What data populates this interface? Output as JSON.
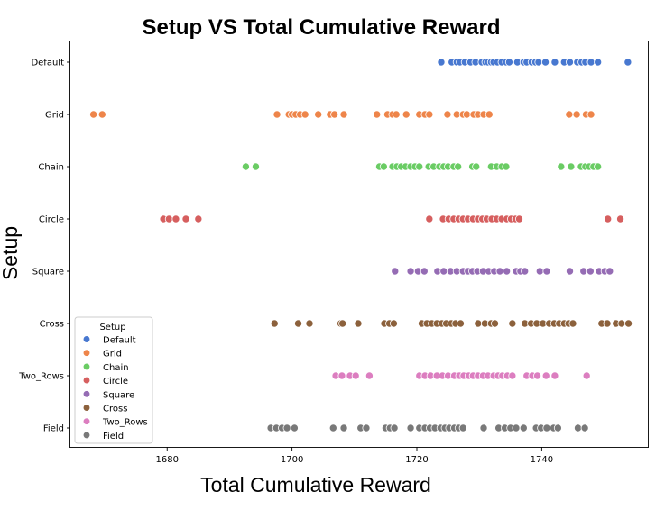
{
  "chart_data": {
    "type": "scatter",
    "title": "Setup VS Total Cumulative Reward",
    "xlabel": "Total Cumulative Reward",
    "ylabel": "Setup",
    "xlim": [
      1664.5,
      1757
    ],
    "x_ticks": [
      1680,
      1700,
      1720,
      1740
    ],
    "categories": [
      "Default",
      "Grid",
      "Chain",
      "Circle",
      "Square",
      "Cross",
      "Two_Rows",
      "Field"
    ],
    "grid": false,
    "legend": {
      "title": "Setup",
      "placement": "lower-left",
      "entries": [
        "Default",
        "Grid",
        "Chain",
        "Circle",
        "Square",
        "Cross",
        "Two_Rows",
        "Field"
      ]
    },
    "series": [
      {
        "name": "Default",
        "color": "#4878d0",
        "values": [
          1723.9,
          1725.6,
          1726.4,
          1726.9,
          1727.7,
          1728.6,
          1729.4,
          1730.4,
          1731.0,
          1731.4,
          1731.9,
          1732.3,
          1732.9,
          1733.6,
          1734.3,
          1734.8,
          1736.1,
          1737.1,
          1737.6,
          1738.4,
          1739.0,
          1739.5,
          1740.6,
          1742.1,
          1743.6,
          1744.5,
          1745.7,
          1746.4,
          1747.0,
          1747.9,
          1749.0,
          1753.8
        ]
      },
      {
        "name": "Grid",
        "color": "#ee854a",
        "values": [
          1668.2,
          1669.6,
          1697.6,
          1699.5,
          1700.0,
          1700.6,
          1701.3,
          1702.1,
          1704.2,
          1706.1,
          1706.8,
          1708.3,
          1713.6,
          1715.3,
          1716.1,
          1716.7,
          1718.3,
          1720.4,
          1721.3,
          1722.0,
          1724.9,
          1726.4,
          1727.4,
          1728.0,
          1729.1,
          1729.8,
          1730.7,
          1731.6,
          1744.4,
          1745.6,
          1747.1,
          1747.9
        ]
      },
      {
        "name": "Chain",
        "color": "#6acc64",
        "values": [
          1692.6,
          1694.2,
          1714.0,
          1714.7,
          1716.1,
          1716.8,
          1717.5,
          1718.2,
          1719.0,
          1719.7,
          1720.4,
          1721.9,
          1722.7,
          1723.6,
          1724.3,
          1725.0,
          1725.9,
          1726.6,
          1728.9,
          1729.5,
          1731.9,
          1732.8,
          1733.6,
          1734.3,
          1743.1,
          1744.7,
          1746.3,
          1747.0,
          1747.6,
          1748.3,
          1749.0
        ]
      },
      {
        "name": "Circle",
        "color": "#d65f5f",
        "values": [
          1679.4,
          1680.3,
          1681.4,
          1683.0,
          1685.0,
          1722.0,
          1724.2,
          1725.1,
          1725.9,
          1726.7,
          1727.4,
          1728.2,
          1729.0,
          1729.8,
          1730.5,
          1731.2,
          1732.0,
          1732.8,
          1733.6,
          1734.4,
          1735.1,
          1735.8,
          1736.4,
          1750.6,
          1752.6
        ]
      },
      {
        "name": "Square",
        "color": "#956cb4",
        "values": [
          1716.5,
          1719.0,
          1720.2,
          1721.2,
          1723.3,
          1724.3,
          1725.4,
          1726.4,
          1727.4,
          1728.2,
          1728.9,
          1729.7,
          1730.6,
          1731.5,
          1732.4,
          1733.3,
          1734.4,
          1735.9,
          1736.6,
          1737.3,
          1739.7,
          1740.8,
          1744.5,
          1746.7,
          1747.8,
          1749.2,
          1750.1,
          1750.9
        ]
      },
      {
        "name": "Cross",
        "color": "#8c613c",
        "values": [
          1697.2,
          1701.0,
          1702.8,
          1707.8,
          1708.1,
          1710.6,
          1714.8,
          1715.6,
          1716.3,
          1720.8,
          1721.6,
          1722.4,
          1723.2,
          1724.0,
          1724.7,
          1725.5,
          1726.2,
          1727.0,
          1729.8,
          1730.9,
          1731.9,
          1732.5,
          1735.3,
          1737.3,
          1738.3,
          1739.2,
          1740.2,
          1741.2,
          1742.0,
          1742.8,
          1743.6,
          1744.3,
          1745.0,
          1749.6,
          1750.5,
          1751.9,
          1752.8,
          1753.9
        ]
      },
      {
        "name": "Two_Rows",
        "color": "#dc7ec0",
        "values": [
          1707.0,
          1708.0,
          1709.3,
          1710.2,
          1712.4,
          1720.4,
          1721.3,
          1722.2,
          1723.2,
          1724.1,
          1725.0,
          1726.0,
          1726.8,
          1727.5,
          1728.3,
          1729.0,
          1729.8,
          1730.6,
          1731.4,
          1732.3,
          1733.0,
          1733.7,
          1734.5,
          1735.3,
          1737.6,
          1738.5,
          1739.3,
          1740.7,
          1742.1,
          1747.2
        ]
      },
      {
        "name": "Field",
        "color": "#797979",
        "values": [
          1696.6,
          1697.5,
          1698.4,
          1699.2,
          1700.4,
          1706.6,
          1708.3,
          1711.0,
          1711.9,
          1715.0,
          1715.7,
          1716.4,
          1719.0,
          1720.4,
          1721.3,
          1722.1,
          1722.9,
          1723.8,
          1724.5,
          1725.2,
          1726.0,
          1726.7,
          1727.4,
          1730.7,
          1733.1,
          1734.1,
          1735.0,
          1735.9,
          1737.1,
          1739.1,
          1739.9,
          1740.8,
          1741.9,
          1742.6,
          1745.8,
          1746.9
        ]
      }
    ]
  }
}
